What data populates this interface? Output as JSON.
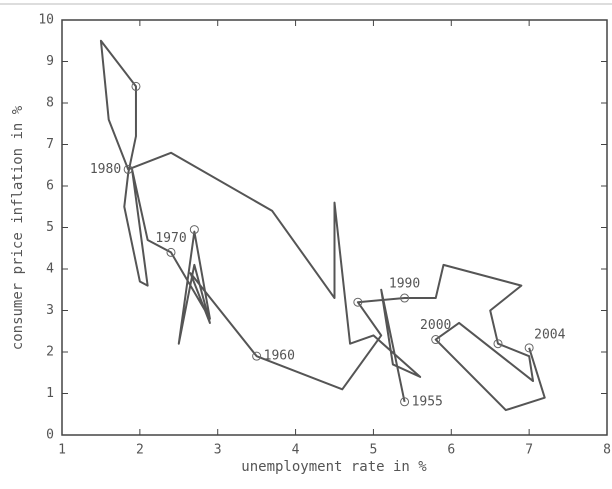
{
  "chart_data": {
    "type": "line",
    "xlabel": "unemployment rate in %",
    "ylabel": "consumer price inflation in %",
    "xlim": [
      1,
      8
    ],
    "xticks": [
      1,
      2,
      3,
      4,
      5,
      6,
      7,
      8
    ],
    "ylim": [
      0,
      10
    ],
    "yticks": [
      0,
      1,
      2,
      3,
      4,
      5,
      6,
      7,
      8,
      9,
      10
    ],
    "color": "#555555",
    "x": [
      5.4,
      5.1,
      5.25,
      5.6,
      5.0,
      4.7,
      4.5,
      4.5,
      3.7,
      2.4,
      1.85,
      1.6,
      1.5,
      1.95,
      1.95,
      1.85,
      1.8,
      2.0,
      2.1,
      1.9,
      2.1,
      2.4,
      2.9,
      2.7,
      2.5,
      2.7,
      2.9,
      2.65,
      3.5,
      4.6,
      5.1,
      4.8,
      5.4,
      5.8,
      5.9,
      6.9,
      6.5,
      6.6,
      7.0,
      7.05,
      6.1,
      5.8,
      6.7,
      7.2,
      7.0
    ],
    "y": [
      0.8,
      3.5,
      1.7,
      1.4,
      2.4,
      2.2,
      5.6,
      3.3,
      5.4,
      6.8,
      6.4,
      7.6,
      9.5,
      8.4,
      7.2,
      6.3,
      5.5,
      3.7,
      3.6,
      6.4,
      4.7,
      4.4,
      2.8,
      4.9,
      2.2,
      4.1,
      2.7,
      3.9,
      1.9,
      1.1,
      2.4,
      3.2,
      3.3,
      3.3,
      4.1,
      3.6,
      3.0,
      2.2,
      1.9,
      1.3,
      2.7,
      2.3,
      0.6,
      0.9,
      2.1
    ],
    "circled_points": {
      "x": [
        5.4,
        3.5,
        2.4,
        1.85,
        5.4,
        5.8,
        7.0,
        1.95,
        2.7,
        4.8,
        6.6
      ],
      "y": [
        0.8,
        1.9,
        4.4,
        6.4,
        3.3,
        2.3,
        2.1,
        8.4,
        4.95,
        3.2,
        2.2
      ]
    },
    "annotations": [
      {
        "text": "1955",
        "x": 5.4,
        "y": 0.8,
        "side": "right"
      },
      {
        "text": "1960",
        "x": 3.5,
        "y": 1.9,
        "side": "right"
      },
      {
        "text": "1970",
        "x": 2.4,
        "y": 4.4,
        "side": "above"
      },
      {
        "text": "1980",
        "x": 1.85,
        "y": 6.4,
        "side": "left"
      },
      {
        "text": "1990",
        "x": 5.4,
        "y": 3.3,
        "side": "above"
      },
      {
        "text": "2000",
        "x": 5.8,
        "y": 2.3,
        "side": "above"
      },
      {
        "text": "2004",
        "x": 7.0,
        "y": 2.1,
        "side": "aboveright"
      }
    ]
  }
}
